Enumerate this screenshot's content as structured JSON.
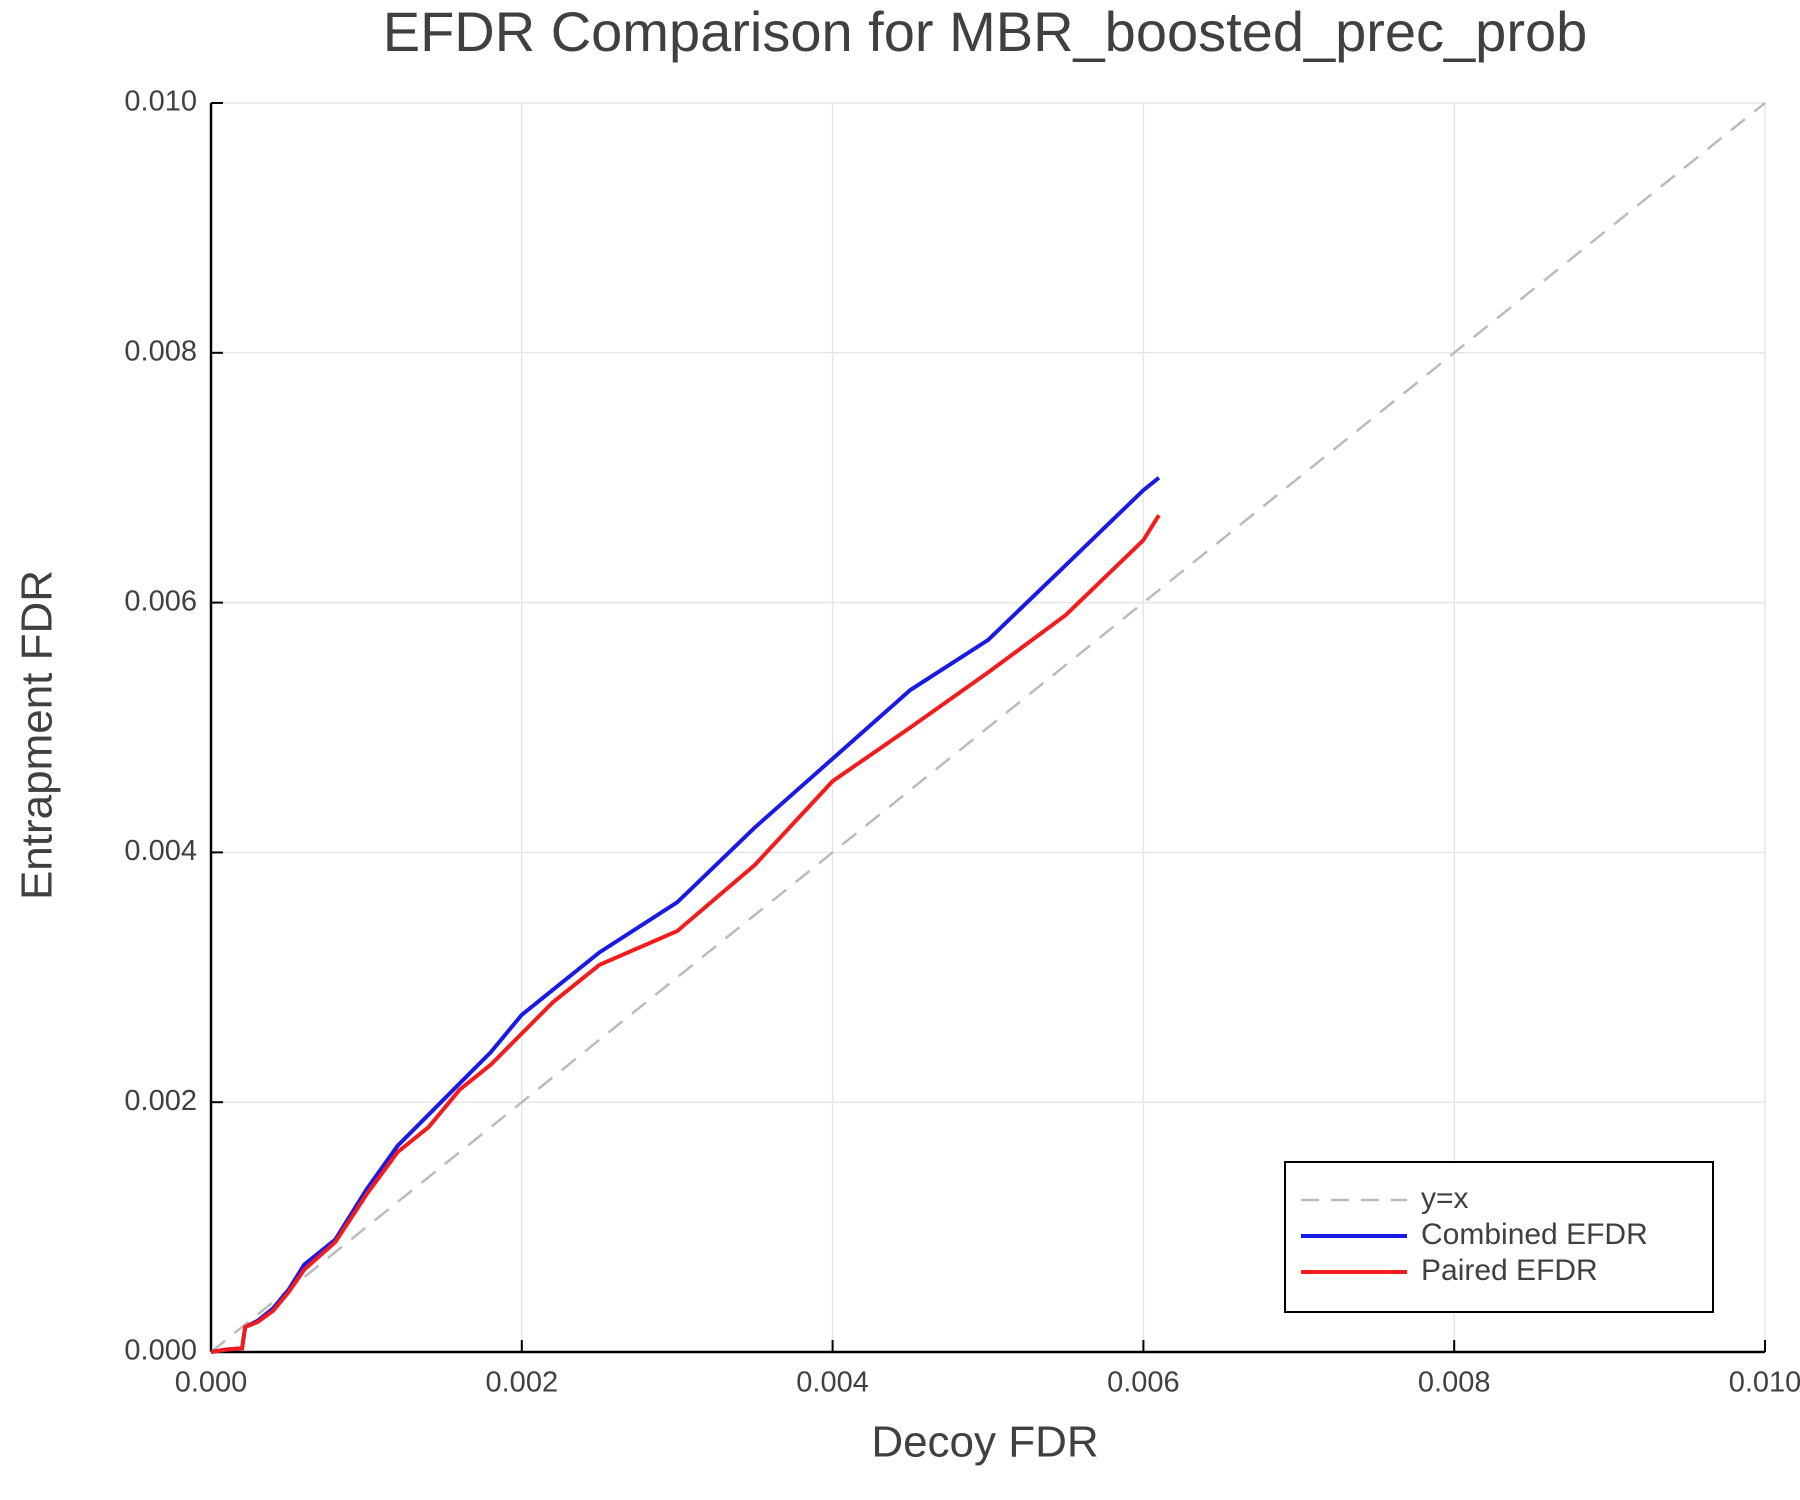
{
  "chart_data": {
    "type": "line",
    "title": "EFDR Comparison for MBR_boosted_prec_prob",
    "x_label": "Decoy FDR",
    "y_label": "Entrapment FDR",
    "xlim": [
      0,
      0.01
    ],
    "ylim": [
      0,
      0.01
    ],
    "xticks": [
      {
        "value": 0,
        "label": "0.000"
      },
      {
        "value": 0.002,
        "label": "0.002"
      },
      {
        "value": 0.004,
        "label": "0.004"
      },
      {
        "value": 0.006,
        "label": "0.006"
      },
      {
        "value": 0.008,
        "label": "0.008"
      },
      {
        "value": 0.01,
        "label": "0.010"
      }
    ],
    "yticks": [
      {
        "value": 0,
        "label": "0.000"
      },
      {
        "value": 0.002,
        "label": "0.002"
      },
      {
        "value": 0.004,
        "label": "0.004"
      },
      {
        "value": 0.006,
        "label": "0.006"
      },
      {
        "value": 0.008,
        "label": "0.008"
      },
      {
        "value": 0.01,
        "label": "0.010"
      }
    ],
    "grid": true,
    "legend": "lower right",
    "series": [
      {
        "name": "y=x",
        "color": "#bbbbbb",
        "dashed": true,
        "x": [
          0,
          0.01
        ],
        "values": [
          0,
          0.01
        ]
      },
      {
        "name": "Combined EFDR",
        "color": "#1a1ae6",
        "x": [
          0,
          0.0001,
          0.0002,
          0.00022,
          0.0003,
          0.0004,
          0.0005,
          0.0006,
          0.0008,
          0.001,
          0.0012,
          0.0014,
          0.0016,
          0.0018,
          0.002,
          0.0022,
          0.0025,
          0.003,
          0.0035,
          0.004,
          0.0045,
          0.005,
          0.0055,
          0.006,
          0.0061
        ],
        "values": [
          0,
          2e-05,
          3e-05,
          0.0002,
          0.00025,
          0.00035,
          0.0005,
          0.0007,
          0.0009,
          0.0013,
          0.00165,
          0.0019,
          0.00215,
          0.0024,
          0.0027,
          0.0029,
          0.0032,
          0.0036,
          0.0042,
          0.00475,
          0.0053,
          0.0057,
          0.0063,
          0.0069,
          0.007
        ]
      },
      {
        "name": "Paired EFDR",
        "color": "#f21c1c",
        "x": [
          0,
          0.0001,
          0.0002,
          0.00022,
          0.0003,
          0.0004,
          0.0005,
          0.0006,
          0.0008,
          0.001,
          0.0012,
          0.0014,
          0.0016,
          0.0018,
          0.002,
          0.0022,
          0.0025,
          0.003,
          0.0035,
          0.004,
          0.0045,
          0.005,
          0.0055,
          0.006,
          0.0061
        ],
        "values": [
          0,
          2e-05,
          3e-05,
          0.0002,
          0.00024,
          0.00033,
          0.00048,
          0.00066,
          0.00088,
          0.00126,
          0.0016,
          0.0018,
          0.0021,
          0.0023,
          0.00255,
          0.0028,
          0.0031,
          0.00337,
          0.0039,
          0.00457,
          0.005,
          0.00544,
          0.0059,
          0.0065,
          0.0067
        ]
      }
    ]
  }
}
